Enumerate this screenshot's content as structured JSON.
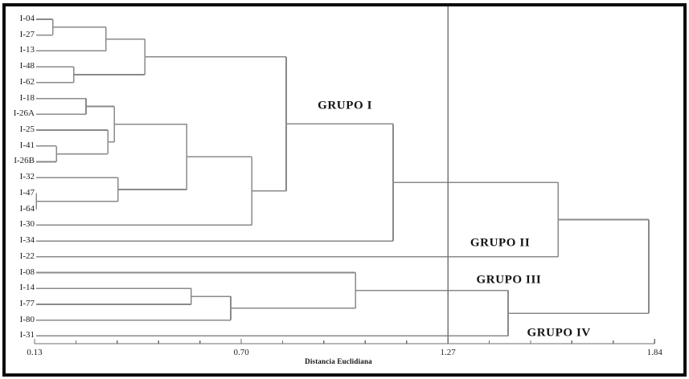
{
  "window": {
    "background_color": "#ffffff",
    "frame_border_color": "#0c0c0c"
  },
  "chart_data": {
    "type": "dendrogram",
    "orientation": "horizontal",
    "title": "",
    "xlabel": "Distancia Euclidiana",
    "line_color": "#8a8a8a",
    "axis_color": "#6f6f6f",
    "reference_line_color": "#777777",
    "text_color": "#1c1c1c",
    "x_axis": {
      "min": 0.13,
      "max": 1.84,
      "major_ticks": [
        0.13,
        0.7,
        1.27,
        1.84
      ],
      "major_tick_labels": [
        "0.13",
        "0.70",
        "1.27",
        "1.84"
      ],
      "minor_ticks_per_interval": 5
    },
    "reference_line_x": 1.27,
    "leaves": [
      "I-04",
      "I-27",
      "I-13",
      "I-48",
      "I-62",
      "I-18",
      "I-26A",
      "I-25",
      "I-41",
      "I-26B",
      "I-32",
      "I-47",
      "I-64",
      "I-30",
      "I-34",
      "I-22",
      "I-08",
      "I-14",
      "I-77",
      "I-80",
      "I-31"
    ],
    "merges": [
      {
        "id": "M1",
        "a": "I-04",
        "b": "I-27",
        "distance": 0.18
      },
      {
        "id": "M2",
        "a": "M1",
        "b": "I-13",
        "distance": 0.327
      },
      {
        "id": "M3",
        "a": "I-48",
        "b": "I-62",
        "distance": 0.238
      },
      {
        "id": "M4",
        "a": "M2",
        "b": "M3",
        "distance": 0.434
      },
      {
        "id": "M5",
        "a": "I-18",
        "b": "I-26A",
        "distance": 0.272
      },
      {
        "id": "M6",
        "a": "I-41",
        "b": "I-26B",
        "distance": 0.19
      },
      {
        "id": "M7",
        "a": "I-25",
        "b": "M6",
        "distance": 0.332
      },
      {
        "id": "M8",
        "a": "M5",
        "b": "M7",
        "distance": 0.35
      },
      {
        "id": "M9",
        "a": "I-47",
        "b": "I-64",
        "distance": 0.135
      },
      {
        "id": "M10",
        "a": "I-32",
        "b": "M9",
        "distance": 0.36
      },
      {
        "id": "M11",
        "a": "M8",
        "b": "M10",
        "distance": 0.55
      },
      {
        "id": "M12",
        "a": "M11",
        "b": "I-30",
        "distance": 0.729
      },
      {
        "id": "M13",
        "a": "M4",
        "b": "M12",
        "distance": 0.824
      },
      {
        "id": "M14",
        "a": "M13",
        "b": "I-34",
        "distance": 1.119
      },
      {
        "id": "M15",
        "a": "M14",
        "b": "I-22",
        "distance": 1.574
      },
      {
        "id": "M16",
        "a": "I-14",
        "b": "I-77",
        "distance": 0.562
      },
      {
        "id": "M17",
        "a": "M16",
        "b": "I-80",
        "distance": 0.671
      },
      {
        "id": "M18",
        "a": "I-08",
        "b": "M17",
        "distance": 1.015
      },
      {
        "id": "M19",
        "a": "M18",
        "b": "I-31",
        "distance": 1.436
      },
      {
        "id": "M20",
        "a": "M15",
        "b": "M19",
        "distance": 1.824
      }
    ],
    "annotations": [
      {
        "label": "GRUPO I",
        "x_distance": 0.986,
        "y_row": 5.48
      },
      {
        "label": "GRUPO II",
        "x_distance": 1.414,
        "y_row": 14.15
      },
      {
        "label": "GRUPO III",
        "x_distance": 1.438,
        "y_row": 16.48
      },
      {
        "label": "GRUPO IV",
        "x_distance": 1.576,
        "y_row": 19.83
      }
    ],
    "legend": null,
    "grid": false
  }
}
